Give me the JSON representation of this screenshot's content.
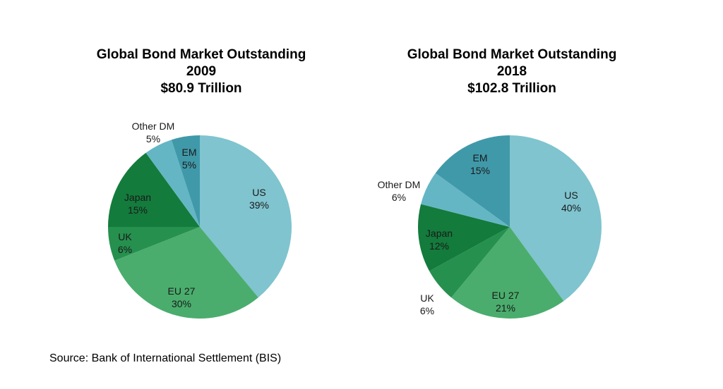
{
  "colors": {
    "US": "#7fc4cf",
    "EU 27": "#4aad6d",
    "UK": "#26904f",
    "Japan": "#137b3c",
    "Other DM": "#64b6c4",
    "EM": "#4099a9"
  },
  "chart_data": [
    {
      "type": "pie",
      "title_lines": [
        "Global Bond Market Outstanding",
        "2009",
        "$80.9 Trillion"
      ],
      "slices": [
        {
          "label": "US",
          "value": 39,
          "value_label": "39%"
        },
        {
          "label": "EU 27",
          "value": 30,
          "value_label": "30%"
        },
        {
          "label": "UK",
          "value": 6,
          "value_label": "6%"
        },
        {
          "label": "Japan",
          "value": 15,
          "value_label": "15%"
        },
        {
          "label": "Other DM",
          "value": 5,
          "value_label": "5%"
        },
        {
          "label": "EM",
          "value": 5,
          "value_label": "5%"
        }
      ],
      "start": "12 o'clock",
      "direction": "clockwise"
    },
    {
      "type": "pie",
      "title_lines": [
        "Global Bond Market Outstanding",
        "2018",
        "$102.8 Trillion"
      ],
      "slices": [
        {
          "label": "US",
          "value": 40,
          "value_label": "40%"
        },
        {
          "label": "EU 27",
          "value": 21,
          "value_label": "21%"
        },
        {
          "label": "UK",
          "value": 6,
          "value_label": "6%"
        },
        {
          "label": "Japan",
          "value": 12,
          "value_label": "12%"
        },
        {
          "label": "Other DM",
          "value": 6,
          "value_label": "6%"
        },
        {
          "label": "EM",
          "value": 15,
          "value_label": "15%"
        }
      ],
      "start": "12 o'clock",
      "direction": "clockwise"
    }
  ],
  "source": "Source: Bank of International Settlement (BIS)"
}
